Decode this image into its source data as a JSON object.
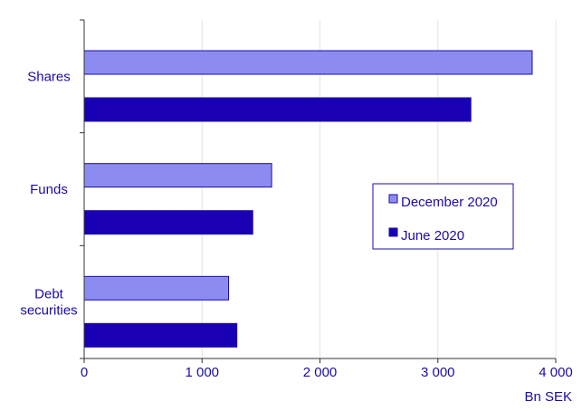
{
  "chart_data": {
    "type": "bar",
    "orientation": "horizontal",
    "categories": [
      "Shares",
      "Funds",
      "Debt securities"
    ],
    "category_lines": [
      [
        "Shares"
      ],
      [
        "Funds"
      ],
      [
        "Debt",
        "securities"
      ]
    ],
    "series": [
      {
        "name": "December 2020",
        "values": [
          3800,
          1590,
          1225
        ],
        "color": "#8c8cf0"
      },
      {
        "name": "June 2020",
        "values": [
          3280,
          1430,
          1295
        ],
        "color": "#1a00b4"
      }
    ],
    "xlim": [
      0,
      4000
    ],
    "xticks": [
      0,
      1000,
      2000,
      3000,
      4000
    ],
    "xtick_labels": [
      "0",
      "1 000",
      "2 000",
      "3 000",
      "4 000"
    ],
    "xlabel": "Bn SEK",
    "grid": "vertical",
    "legend_position": "right-middle",
    "colors": {
      "text": "#1a0da8",
      "axis": "#333333",
      "grid": "#e4e4e4"
    }
  }
}
